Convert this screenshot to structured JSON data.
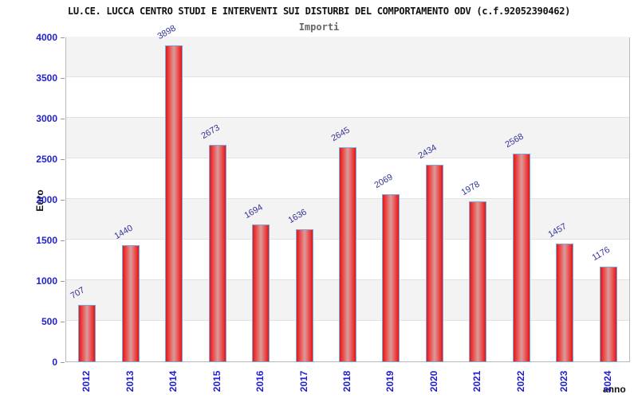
{
  "header": {
    "title": "LU.CE. LUCCA CENTRO STUDI E INTERVENTI SUI DISTURBI DEL COMPORTAMENTO ODV (c.f.92052390462)",
    "subtitle": "Importi"
  },
  "chart_data": {
    "type": "bar",
    "title": "LU.CE. LUCCA CENTRO STUDI E INTERVENTI SUI DISTURBI DEL COMPORTAMENTO ODV (c.f.92052390462)",
    "subtitle": "Importi",
    "xlabel": "anno",
    "ylabel": "Euro",
    "categories": [
      "2012",
      "2013",
      "2014",
      "2015",
      "2016",
      "2017",
      "2018",
      "2019",
      "2020",
      "2021",
      "2022",
      "2023",
      "2024"
    ],
    "values": [
      707,
      1440,
      3898,
      2673,
      1694,
      1636,
      2645,
      2069,
      2434,
      1978,
      2568,
      1457,
      1176
    ],
    "ylim": [
      0,
      4000
    ],
    "ytick_step": 500,
    "yticks": [
      "0",
      "500",
      "1000",
      "1500",
      "2000",
      "2500",
      "3000",
      "3500",
      "4000"
    ],
    "grid": "alternating horizontal bands every 500, light gridlines at each tick",
    "legend_position": "none",
    "colors": {
      "title_text": "#111111",
      "subtitle_text": "#666666",
      "axis_tick_text": "#2222cc",
      "value_label_text": "#333399",
      "bar_edge": "#d61b21",
      "bar_bright": "#f04040",
      "bar_center": "#d89c9c",
      "bar_border": "#79a9d8",
      "band_gray": "#f3f3f3",
      "gridline": "#e2e2e2",
      "tick_mark": "#999999",
      "plot_border": "#b9b9b9"
    }
  }
}
